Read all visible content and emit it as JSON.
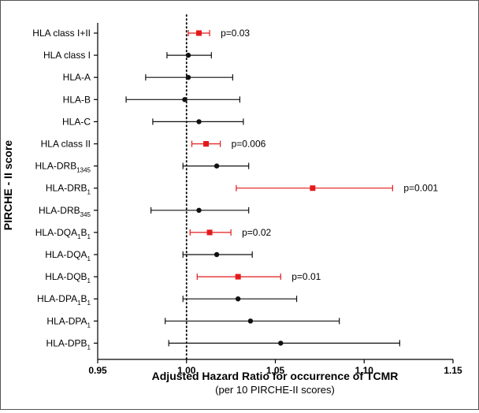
{
  "chart_data": {
    "type": "forest",
    "ylabel": "PIRCHE - II score",
    "xlabel": "Adjusted Hazard Ratio for occurrence of TCMR",
    "xlabel_sub": "(per 10 PIRCHE-II scores)",
    "xlim": [
      0.95,
      1.15
    ],
    "xticks": [
      "0.95",
      "1.00",
      "1.05",
      "1.10",
      "1.15"
    ],
    "reference_line": 1.0,
    "grid": false,
    "colors": {
      "significant": "#e31a1c",
      "nonsignificant": "#111111"
    },
    "rows": [
      {
        "base": "HLA class I+II",
        "sub": "",
        "est": 1.007,
        "lo": 1.001,
        "hi": 1.013,
        "significant": true,
        "p": "p=0.03"
      },
      {
        "base": "HLA class I",
        "sub": "",
        "est": 1.001,
        "lo": 0.989,
        "hi": 1.014,
        "significant": false,
        "p": ""
      },
      {
        "base": "HLA-A",
        "sub": "",
        "est": 1.001,
        "lo": 0.977,
        "hi": 1.026,
        "significant": false,
        "p": ""
      },
      {
        "base": "HLA-B",
        "sub": "",
        "est": 0.999,
        "lo": 0.966,
        "hi": 1.03,
        "significant": false,
        "p": ""
      },
      {
        "base": "HLA-C",
        "sub": "",
        "est": 1.007,
        "lo": 0.981,
        "hi": 1.032,
        "significant": false,
        "p": ""
      },
      {
        "base": "HLA class II",
        "sub": "",
        "est": 1.011,
        "lo": 1.003,
        "hi": 1.019,
        "significant": true,
        "p": "p=0.006"
      },
      {
        "base": "HLA-DRB",
        "sub": "1345",
        "est": 1.017,
        "lo": 0.998,
        "hi": 1.035,
        "significant": false,
        "p": ""
      },
      {
        "base": "HLA-DRB",
        "sub": "1",
        "est": 1.071,
        "lo": 1.028,
        "hi": 1.116,
        "significant": true,
        "p": "p=0.001"
      },
      {
        "base": "HLA-DRB",
        "sub": "345",
        "est": 1.007,
        "lo": 0.98,
        "hi": 1.035,
        "significant": false,
        "p": ""
      },
      {
        "base": "HLA-DQA",
        "sub": "1",
        "base2": "B",
        "sub2": "1",
        "est": 1.013,
        "lo": 1.002,
        "hi": 1.025,
        "significant": true,
        "p": "p=0.02"
      },
      {
        "base": "HLA-DQA",
        "sub": "1",
        "est": 1.017,
        "lo": 0.998,
        "hi": 1.037,
        "significant": false,
        "p": ""
      },
      {
        "base": "HLA-DQB",
        "sub": "1",
        "est": 1.029,
        "lo": 1.006,
        "hi": 1.053,
        "significant": true,
        "p": "p=0.01"
      },
      {
        "base": "HLA-DPA",
        "sub": "1",
        "base2": "B",
        "sub2": "1",
        "est": 1.029,
        "lo": 0.998,
        "hi": 1.062,
        "significant": false,
        "p": ""
      },
      {
        "base": "HLA-DPA",
        "sub": "1",
        "est": 1.036,
        "lo": 0.988,
        "hi": 1.086,
        "significant": false,
        "p": ""
      },
      {
        "base": "HLA-DPB",
        "sub": "1",
        "est": 1.053,
        "lo": 0.99,
        "hi": 1.12,
        "significant": false,
        "p": ""
      }
    ]
  }
}
